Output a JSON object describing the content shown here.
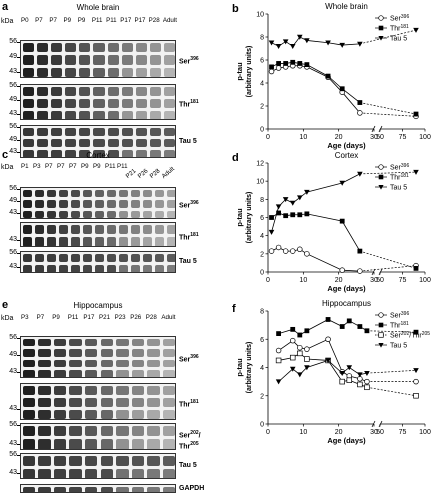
{
  "panels": [
    {
      "letter": "a",
      "title": "Whole brain",
      "unit": "kDa",
      "lanes": [
        "P0",
        "P7",
        "P7",
        "P9",
        "P9",
        "P11",
        "P11",
        "P17",
        "P17",
        "P28",
        "Adult"
      ],
      "blots": [
        {
          "label": "Ser396",
          "main": "Ser",
          "sup": "396",
          "mw": [
            "56",
            "49",
            "43"
          ]
        },
        {
          "label": "Thr181",
          "main": "Thr",
          "sup": "181",
          "mw": [
            "56",
            "49",
            "43"
          ]
        },
        {
          "label": "Tau 5",
          "main": "Tau 5",
          "sup": "",
          "mw": [
            "56",
            "49",
            "43"
          ]
        }
      ]
    },
    {
      "letter": "c",
      "title": "Cortex",
      "unit": "kDa",
      "lanes": [
        "P1",
        "P3",
        "P7",
        "P7",
        "P7",
        "P9",
        "P9",
        "P11",
        "P11",
        "P21",
        "P26",
        "P28",
        "Adult"
      ],
      "blots": [
        {
          "label": "Ser396",
          "main": "Ser",
          "sup": "396",
          "mw": [
            "56",
            "49",
            "43"
          ]
        },
        {
          "label": "Thr181",
          "main": "Thr",
          "sup": "181",
          "mw": [
            "43"
          ]
        },
        {
          "label": "Tau 5",
          "main": "Tau 5",
          "sup": "",
          "mw": [
            "56",
            "43"
          ]
        }
      ]
    },
    {
      "letter": "e",
      "title": "Hippocampus",
      "unit": "kDa",
      "lanes": [
        "P3",
        "P7",
        "P9",
        "P11",
        "P17",
        "P21",
        "P23",
        "P26",
        "P28",
        "Adult"
      ],
      "blots": [
        {
          "label": "Ser396",
          "main": "Ser",
          "sup": "396",
          "mw": [
            "56",
            "49",
            "43"
          ]
        },
        {
          "label": "Thr181",
          "main": "Thr",
          "sup": "181",
          "mw": [
            "43"
          ]
        },
        {
          "label": "Ser202/Thr205",
          "main": "Ser",
          "sup": "202",
          "main2": "Thr",
          "sup2": "205",
          "mw": [
            "56",
            "43"
          ]
        },
        {
          "label": "Tau 5",
          "main": "Tau 5",
          "sup": "",
          "mw": [
            "56",
            "43"
          ]
        },
        {
          "label": "GAPDH",
          "main": "GAPDH",
          "sup": "",
          "mw": []
        }
      ]
    }
  ],
  "chart_data": [
    {
      "panel": "b",
      "type": "line",
      "title": "Whole brain",
      "xlabel": "Age (days)",
      "ylabel": "p-tau\n(arbitrary units)",
      "ylabel_line1": "p-tau",
      "ylabel_line2": "(arbitrary units)",
      "xlim": [
        0,
        100
      ],
      "ylim": [
        0,
        10
      ],
      "xticks": [
        "0",
        "10",
        "20",
        "30",
        "50",
        "75",
        "100"
      ],
      "yticks": [
        "0",
        "2",
        "4",
        "6",
        "8",
        "10"
      ],
      "x_axis_break": true,
      "legend": "top-right",
      "series": [
        {
          "name": "Ser396",
          "marker": "open-circle",
          "x": [
            1,
            3,
            5,
            7,
            9,
            11,
            17,
            21,
            26,
            90
          ],
          "y": [
            5.0,
            5.3,
            5.4,
            5.5,
            5.5,
            5.4,
            4.5,
            3.2,
            1.4,
            1.1
          ]
        },
        {
          "name": "Thr181",
          "marker": "filled-square",
          "x": [
            1,
            3,
            5,
            7,
            9,
            11,
            17,
            21,
            26,
            90
          ],
          "y": [
            5.4,
            5.7,
            5.7,
            5.8,
            5.7,
            5.6,
            4.6,
            3.5,
            2.3,
            1.3
          ]
        },
        {
          "name": "Tau 5",
          "marker": "filled-triangle-down",
          "x": [
            1,
            3,
            5,
            7,
            9,
            11,
            17,
            21,
            26,
            90
          ],
          "y": [
            7.5,
            7.2,
            7.6,
            7.2,
            8.0,
            7.7,
            7.5,
            7.3,
            7.4,
            8.6
          ]
        }
      ]
    },
    {
      "panel": "d",
      "type": "line",
      "title": "Cortex",
      "xlabel": "Age (days)",
      "ylabel_line1": "p-tau",
      "ylabel_line2": "(arbitrary units)",
      "xlim": [
        0,
        100
      ],
      "ylim": [
        0,
        12
      ],
      "xticks": [
        "0",
        "10",
        "20",
        "30",
        "50",
        "75",
        "100"
      ],
      "yticks": [
        "0",
        "2",
        "4",
        "6",
        "8",
        "10",
        "12"
      ],
      "x_axis_break": true,
      "legend": "top-right",
      "series": [
        {
          "name": "Ser396",
          "marker": "open-circle",
          "x": [
            1,
            3,
            5,
            7,
            9,
            11,
            21,
            26,
            90
          ],
          "y": [
            2.3,
            2.7,
            2.3,
            2.3,
            2.5,
            2.0,
            0.2,
            0.1,
            0.7
          ]
        },
        {
          "name": "Thr181",
          "marker": "filled-square",
          "x": [
            1,
            3,
            5,
            7,
            9,
            11,
            21,
            26,
            90
          ],
          "y": [
            6.0,
            6.5,
            6.2,
            6.3,
            6.3,
            6.4,
            5.6,
            2.3,
            0.4
          ]
        },
        {
          "name": "Tau 5",
          "marker": "filled-triangle-down",
          "x": [
            1,
            3,
            5,
            7,
            9,
            11,
            21,
            26,
            90
          ],
          "y": [
            4.4,
            7.2,
            8.0,
            7.6,
            8.2,
            8.8,
            9.8,
            10.8,
            11.0
          ]
        }
      ]
    },
    {
      "panel": "f",
      "type": "line",
      "title": "Hippocampus",
      "xlabel": "Age (days)",
      "ylabel_line1": "p-tau",
      "ylabel_line2": "(arbitrary units)",
      "xlim": [
        0,
        100
      ],
      "ylim": [
        0,
        8
      ],
      "xticks": [
        "0",
        "10",
        "20",
        "30",
        "50",
        "75",
        "100"
      ],
      "yticks": [
        "0",
        "2",
        "4",
        "6",
        "8"
      ],
      "x_axis_break": true,
      "legend": "top-right",
      "series": [
        {
          "name": "Ser396",
          "marker": "open-circle",
          "x": [
            3,
            7,
            9,
            11,
            17,
            21,
            23,
            26,
            28,
            90
          ],
          "y": [
            5.2,
            5.9,
            5.4,
            5.3,
            6.0,
            3.7,
            3.4,
            3.2,
            3.0,
            3.0
          ]
        },
        {
          "name": "Thr181",
          "marker": "filled-square",
          "x": [
            3,
            7,
            9,
            11,
            17,
            21,
            23,
            26,
            28,
            90
          ],
          "y": [
            6.4,
            6.7,
            6.3,
            6.6,
            7.4,
            6.9,
            7.3,
            6.9,
            6.6,
            6.5
          ]
        },
        {
          "name": "Ser202/Thr205",
          "marker": "open-square",
          "x": [
            3,
            7,
            9,
            11,
            17,
            21,
            23,
            26,
            28,
            90
          ],
          "y": [
            4.5,
            4.7,
            5.0,
            4.6,
            4.5,
            3.0,
            3.1,
            2.8,
            2.6,
            2.0
          ]
        },
        {
          "name": "Tau 5",
          "marker": "filled-triangle-down",
          "x": [
            3,
            7,
            9,
            11,
            17,
            21,
            23,
            26,
            28,
            90
          ],
          "y": [
            3.0,
            3.9,
            3.5,
            4.0,
            4.5,
            3.6,
            4.0,
            3.5,
            3.6,
            3.8
          ]
        }
      ]
    }
  ]
}
